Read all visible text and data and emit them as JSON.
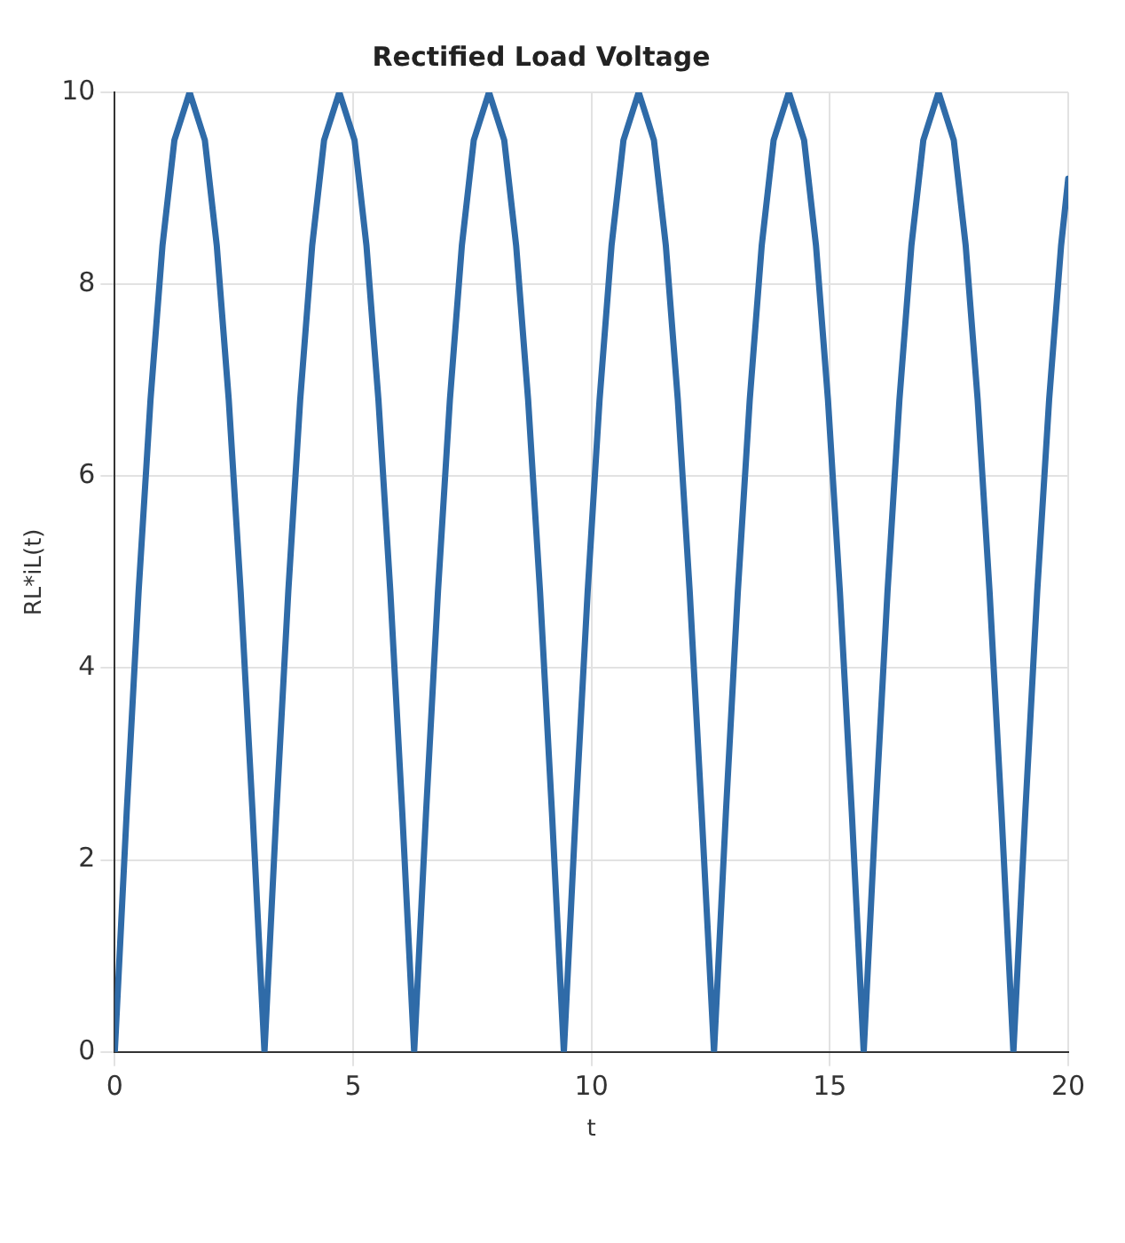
{
  "chart_data": {
    "type": "line",
    "title": "Rectified Load Voltage",
    "xlabel": "t",
    "ylabel": "RL*iL(t)",
    "x": [
      0,
      0.25,
      0.5,
      0.75,
      1,
      1.25,
      1.57,
      1.89,
      2.14,
      2.39,
      2.64,
      2.89,
      3.14,
      3.39,
      3.64,
      3.89,
      4.14,
      4.39,
      4.71,
      5.03,
      5.28,
      5.53,
      5.78,
      6.03,
      6.28,
      6.53,
      6.78,
      7.03,
      7.28,
      7.53,
      7.85,
      8.17,
      8.42,
      8.67,
      8.92,
      9.17,
      9.42,
      9.67,
      9.92,
      10.17,
      10.42,
      10.67,
      10.99,
      11.31,
      11.56,
      11.81,
      12.06,
      12.31,
      12.57,
      12.82,
      13.07,
      13.32,
      13.57,
      13.82,
      14.14,
      14.46,
      14.71,
      14.96,
      15.21,
      15.46,
      15.71,
      15.96,
      16.21,
      16.46,
      16.71,
      16.96,
      17.28,
      17.6,
      17.85,
      18.1,
      18.35,
      18.6,
      18.85,
      19.1,
      19.35,
      19.6,
      19.85,
      20
    ],
    "series": [
      {
        "color": "#2f6ba8",
        "values": [
          0,
          2.5,
          4.8,
          6.8,
          8.4,
          9.5,
          10,
          9.5,
          8.4,
          6.8,
          4.8,
          2.5,
          0,
          2.5,
          4.8,
          6.8,
          8.4,
          9.5,
          10,
          9.5,
          8.4,
          6.8,
          4.8,
          2.5,
          0,
          2.5,
          4.8,
          6.8,
          8.4,
          9.5,
          10,
          9.5,
          8.4,
          6.8,
          4.8,
          2.5,
          0,
          2.5,
          4.8,
          6.8,
          8.4,
          9.5,
          10,
          9.5,
          8.4,
          6.8,
          4.8,
          2.5,
          0,
          2.5,
          4.8,
          6.8,
          8.4,
          9.5,
          10,
          9.5,
          8.4,
          6.8,
          4.8,
          2.5,
          0,
          2.5,
          4.8,
          6.8,
          8.4,
          9.5,
          10,
          9.5,
          8.4,
          6.8,
          4.8,
          2.5,
          0,
          2.5,
          4.8,
          6.8,
          8.4,
          9.1
        ]
      }
    ],
    "xlim": [
      0,
      20
    ],
    "xticks": [
      0,
      5,
      10,
      15,
      20
    ],
    "ylim": [
      0,
      10
    ],
    "yticks": [
      0,
      2,
      4,
      6,
      8,
      10
    ],
    "grid": true,
    "legend": false,
    "marker": "none",
    "line_style": "solid"
  }
}
